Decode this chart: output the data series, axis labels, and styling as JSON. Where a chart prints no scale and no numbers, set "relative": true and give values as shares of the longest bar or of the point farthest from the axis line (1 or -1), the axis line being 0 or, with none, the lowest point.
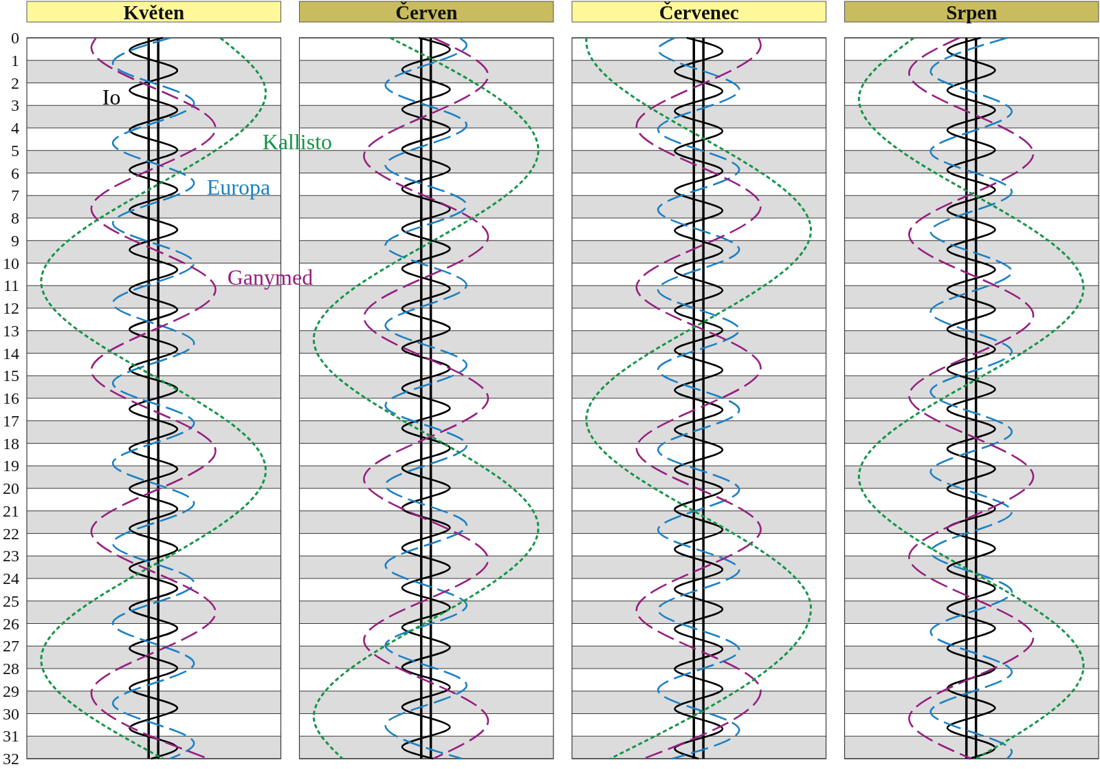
{
  "chart_data": [
    {
      "type": "line",
      "title": "Květen",
      "orientation": "horizontal",
      "relative": true,
      "ylim": [
        32,
        0
      ],
      "yticks": [
        0,
        1,
        2,
        3,
        4,
        5,
        6,
        7,
        8,
        9,
        10,
        11,
        12,
        13,
        14,
        15,
        16,
        17,
        18,
        19,
        20,
        21,
        22,
        23,
        24,
        25,
        26,
        27,
        28,
        29,
        30,
        31,
        32
      ],
      "grid": "y",
      "bands": [
        {
          "axis": "y",
          "from": 1,
          "to": 2,
          "color": "#dcdcdc"
        },
        {
          "axis": "y",
          "from": 3,
          "to": 4,
          "color": "#dcdcdc"
        },
        {
          "axis": "y",
          "from": 5,
          "to": 6,
          "color": "#dcdcdc"
        },
        {
          "axis": "y",
          "from": 7,
          "to": 8,
          "color": "#dcdcdc"
        },
        {
          "axis": "y",
          "from": 9,
          "to": 10,
          "color": "#dcdcdc"
        },
        {
          "axis": "y",
          "from": 11,
          "to": 12,
          "color": "#dcdcdc"
        },
        {
          "axis": "y",
          "from": 13,
          "to": 14,
          "color": "#dcdcdc"
        },
        {
          "axis": "y",
          "from": 15,
          "to": 16,
          "color": "#dcdcdc"
        },
        {
          "axis": "y",
          "from": 17,
          "to": 18,
          "color": "#dcdcdc"
        },
        {
          "axis": "y",
          "from": 19,
          "to": 20,
          "color": "#dcdcdc"
        },
        {
          "axis": "y",
          "from": 21,
          "to": 22,
          "color": "#dcdcdc"
        },
        {
          "axis": "y",
          "from": 23,
          "to": 24,
          "color": "#dcdcdc"
        },
        {
          "axis": "y",
          "from": 25,
          "to": 26,
          "color": "#dcdcdc"
        },
        {
          "axis": "y",
          "from": 27,
          "to": 28,
          "color": "#dcdcdc"
        },
        {
          "axis": "y",
          "from": 29,
          "to": 30,
          "color": "#dcdcdc"
        },
        {
          "axis": "y",
          "from": 31,
          "to": 32,
          "color": "#dcdcdc"
        }
      ],
      "ref_lines": [
        {
          "axis": "x",
          "value": 0.51,
          "color": "#000000"
        },
        {
          "axis": "x",
          "value": 0.55,
          "color": "#000000"
        }
      ],
      "series": [
        {
          "name": "Io",
          "color": "#000000",
          "line_style": "solid",
          "x": [
            0,
            0.56,
            1.45,
            2.33,
            3.21,
            4.1,
            4.98,
            5.87,
            6.75,
            7.64,
            8.52,
            9.41,
            10.29,
            11.18,
            12.06,
            12.94,
            13.83,
            14.71,
            15.6,
            16.48,
            17.37,
            18.25,
            19.14,
            20.02,
            20.91,
            21.79,
            22.68,
            23.56,
            24.44,
            25.33,
            26.21,
            27.1,
            27.98,
            28.87,
            29.75,
            30.64,
            31.52,
            32
          ],
          "values": [
            0.57,
            0.43,
            0.63,
            0.43,
            0.63,
            0.43,
            0.63,
            0.43,
            0.63,
            0.43,
            0.63,
            0.43,
            0.63,
            0.43,
            0.63,
            0.43,
            0.63,
            0.43,
            0.63,
            0.43,
            0.63,
            0.43,
            0.63,
            0.43,
            0.63,
            0.43,
            0.63,
            0.43,
            0.63,
            0.43,
            0.63,
            0.43,
            0.63,
            0.43,
            0.63,
            0.43,
            0.63,
            0.52
          ]
        },
        {
          "name": "Europa",
          "color": "#1b80c4",
          "line_style": "dashed",
          "x": [
            0,
            1.12,
            2.9,
            4.67,
            6.45,
            8.23,
            10.0,
            11.78,
            13.56,
            15.33,
            17.11,
            18.89,
            20.66,
            22.44,
            24.21,
            25.99,
            27.77,
            29.54,
            31.32,
            32
          ],
          "values": [
            0.6,
            0.36,
            0.7,
            0.36,
            0.7,
            0.36,
            0.7,
            0.36,
            0.7,
            0.36,
            0.7,
            0.36,
            0.7,
            0.36,
            0.7,
            0.36,
            0.7,
            0.36,
            0.7,
            0.6
          ]
        },
        {
          "name": "Ganymed",
          "color": "#961f7f",
          "line_style": "dashed",
          "x": [
            0,
            0.43,
            4.01,
            7.59,
            11.18,
            14.76,
            18.34,
            21.92,
            25.5,
            29.09,
            32
          ],
          "values": [
            0.29,
            0.27,
            0.79,
            0.27,
            0.79,
            0.27,
            0.79,
            0.27,
            0.79,
            0.27,
            0.76
          ]
        },
        {
          "name": "Kallisto",
          "color": "#139446",
          "line_style": "dotted",
          "x": [
            0,
            2.43,
            10.82,
            19.21,
            27.6,
            32
          ],
          "values": [
            0.81,
            1,
            0.06,
            1,
            0.06,
            0.57
          ]
        }
      ]
    },
    {
      "type": "line",
      "title": "Červen",
      "orientation": "horizontal",
      "relative": true,
      "ylim": [
        32,
        0
      ],
      "yticks": [
        0,
        1,
        2,
        3,
        4,
        5,
        6,
        7,
        8,
        9,
        10,
        11,
        12,
        13,
        14,
        15,
        16,
        17,
        18,
        19,
        20,
        21,
        22,
        23,
        24,
        25,
        26,
        27,
        28,
        29,
        30,
        31,
        32
      ],
      "grid": "y",
      "tick_labels": false,
      "bands": [
        {
          "axis": "y",
          "from": 1,
          "to": 2,
          "color": "#dcdcdc"
        },
        {
          "axis": "y",
          "from": 3,
          "to": 4,
          "color": "#dcdcdc"
        },
        {
          "axis": "y",
          "from": 5,
          "to": 6,
          "color": "#dcdcdc"
        },
        {
          "axis": "y",
          "from": 7,
          "to": 8,
          "color": "#dcdcdc"
        },
        {
          "axis": "y",
          "from": 9,
          "to": 10,
          "color": "#dcdcdc"
        },
        {
          "axis": "y",
          "from": 11,
          "to": 12,
          "color": "#dcdcdc"
        },
        {
          "axis": "y",
          "from": 13,
          "to": 14,
          "color": "#dcdcdc"
        },
        {
          "axis": "y",
          "from": 15,
          "to": 16,
          "color": "#dcdcdc"
        },
        {
          "axis": "y",
          "from": 17,
          "to": 18,
          "color": "#dcdcdc"
        },
        {
          "axis": "y",
          "from": 19,
          "to": 20,
          "color": "#dcdcdc"
        },
        {
          "axis": "y",
          "from": 21,
          "to": 22,
          "color": "#dcdcdc"
        },
        {
          "axis": "y",
          "from": 23,
          "to": 24,
          "color": "#dcdcdc"
        },
        {
          "axis": "y",
          "from": 25,
          "to": 26,
          "color": "#dcdcdc"
        },
        {
          "axis": "y",
          "from": 27,
          "to": 28,
          "color": "#dcdcdc"
        },
        {
          "axis": "y",
          "from": 29,
          "to": 30,
          "color": "#dcdcdc"
        },
        {
          "axis": "y",
          "from": 31,
          "to": 32,
          "color": "#dcdcdc"
        }
      ],
      "ref_lines": [
        {
          "axis": "x",
          "value": 0.51,
          "color": "#000000"
        },
        {
          "axis": "x",
          "value": 0.55,
          "color": "#000000"
        }
      ],
      "series": [
        {
          "color": "#000000",
          "line_style": "solid",
          "x": [
            0,
            0.52,
            1.41,
            2.29,
            3.18,
            4.06,
            4.94,
            5.83,
            6.71,
            7.6,
            8.48,
            9.37,
            10.25,
            11.14,
            12.02,
            12.91,
            13.79,
            14.67,
            15.56,
            16.44,
            17.33,
            18.21,
            19.1,
            19.98,
            20.87,
            21.75,
            22.64,
            23.52,
            24.41,
            25.29,
            26.17,
            27.06,
            27.94,
            28.83,
            29.71,
            30.6,
            31.48,
            32
          ],
          "values": [
            0.5,
            0.63,
            0.43,
            0.63,
            0.43,
            0.63,
            0.43,
            0.63,
            0.43,
            0.63,
            0.43,
            0.63,
            0.43,
            0.63,
            0.43,
            0.63,
            0.43,
            0.63,
            0.43,
            0.63,
            0.43,
            0.63,
            0.43,
            0.63,
            0.43,
            0.63,
            0.43,
            0.63,
            0.43,
            0.63,
            0.43,
            0.63,
            0.43,
            0.63,
            0.43,
            0.63,
            0.43,
            0.56
          ]
        },
        {
          "color": "#1b80c4",
          "line_style": "dashed",
          "x": [
            0,
            0.32,
            2.1,
            3.87,
            5.65,
            7.43,
            9.2,
            10.98,
            12.76,
            14.53,
            16.31,
            18.09,
            19.86,
            21.64,
            23.42,
            25.19,
            26.97,
            28.74,
            30.52,
            32
          ],
          "values": [
            0.67,
            0.7,
            0.36,
            0.7,
            0.36,
            0.7,
            0.36,
            0.7,
            0.36,
            0.7,
            0.36,
            0.7,
            0.36,
            0.7,
            0.36,
            0.7,
            0.36,
            0.7,
            0.36,
            0.68
          ]
        },
        {
          "color": "#961f7f",
          "line_style": "dashed",
          "x": [
            0,
            1.67,
            5.25,
            8.83,
            12.41,
            16.0,
            19.58,
            23.16,
            26.74,
            30.32,
            32
          ],
          "values": [
            0.56,
            0.79,
            0.27,
            0.79,
            0.27,
            0.79,
            0.27,
            0.79,
            0.27,
            0.79,
            0.56
          ]
        },
        {
          "color": "#139446",
          "line_style": "dotted",
          "x": [
            0,
            4.99,
            13.38,
            21.76,
            30.15,
            32
          ],
          "values": [
            0.38,
            1,
            0.06,
            1,
            0.06,
            0.18
          ]
        }
      ]
    },
    {
      "type": "line",
      "title": "Červenec",
      "orientation": "horizontal",
      "relative": true,
      "ylim": [
        32,
        0
      ],
      "yticks": [
        0,
        1,
        2,
        3,
        4,
        5,
        6,
        7,
        8,
        9,
        10,
        11,
        12,
        13,
        14,
        15,
        16,
        17,
        18,
        19,
        20,
        21,
        22,
        23,
        24,
        25,
        26,
        27,
        28,
        29,
        30,
        31,
        32
      ],
      "grid": "y",
      "tick_labels": false,
      "bands": [
        {
          "axis": "y",
          "from": 1,
          "to": 2,
          "color": "#dcdcdc"
        },
        {
          "axis": "y",
          "from": 3,
          "to": 4,
          "color": "#dcdcdc"
        },
        {
          "axis": "y",
          "from": 5,
          "to": 6,
          "color": "#dcdcdc"
        },
        {
          "axis": "y",
          "from": 7,
          "to": 8,
          "color": "#dcdcdc"
        },
        {
          "axis": "y",
          "from": 9,
          "to": 10,
          "color": "#dcdcdc"
        },
        {
          "axis": "y",
          "from": 11,
          "to": 12,
          "color": "#dcdcdc"
        },
        {
          "axis": "y",
          "from": 13,
          "to": 14,
          "color": "#dcdcdc"
        },
        {
          "axis": "y",
          "from": 15,
          "to": 16,
          "color": "#dcdcdc"
        },
        {
          "axis": "y",
          "from": 17,
          "to": 18,
          "color": "#dcdcdc"
        },
        {
          "axis": "y",
          "from": 19,
          "to": 20,
          "color": "#dcdcdc"
        },
        {
          "axis": "y",
          "from": 21,
          "to": 22,
          "color": "#dcdcdc"
        },
        {
          "axis": "y",
          "from": 23,
          "to": 24,
          "color": "#dcdcdc"
        },
        {
          "axis": "y",
          "from": 25,
          "to": 26,
          "color": "#dcdcdc"
        },
        {
          "axis": "y",
          "from": 27,
          "to": 28,
          "color": "#dcdcdc"
        },
        {
          "axis": "y",
          "from": 29,
          "to": 30,
          "color": "#dcdcdc"
        },
        {
          "axis": "y",
          "from": 31,
          "to": 32,
          "color": "#dcdcdc"
        }
      ],
      "ref_lines": [
        {
          "axis": "x",
          "value": 0.51,
          "color": "#000000"
        },
        {
          "axis": "x",
          "value": 0.55,
          "color": "#000000"
        }
      ],
      "series": [
        {
          "color": "#000000",
          "line_style": "solid",
          "x": [
            0,
            0.6,
            1.48,
            2.37,
            3.25,
            4.14,
            5.02,
            5.91,
            6.79,
            7.67,
            8.56,
            9.44,
            10.33,
            11.21,
            12.1,
            12.98,
            13.87,
            14.75,
            15.64,
            16.52,
            17.4,
            18.29,
            19.17,
            20.06,
            20.94,
            21.83,
            22.71,
            23.6,
            24.48,
            25.37,
            26.25,
            27.14,
            28.02,
            28.9,
            29.79,
            30.67,
            31.56,
            32
          ],
          "values": [
            0.48,
            0.63,
            0.43,
            0.63,
            0.43,
            0.63,
            0.43,
            0.63,
            0.43,
            0.63,
            0.43,
            0.63,
            0.43,
            0.63,
            0.43,
            0.63,
            0.43,
            0.63,
            0.43,
            0.63,
            0.43,
            0.63,
            0.43,
            0.63,
            0.43,
            0.63,
            0.43,
            0.63,
            0.43,
            0.63,
            0.43,
            0.63,
            0.43,
            0.63,
            0.43,
            0.63,
            0.43,
            0.53
          ]
        },
        {
          "color": "#1b80c4",
          "line_style": "dashed",
          "x": [
            0,
            0.52,
            2.3,
            4.07,
            5.85,
            7.63,
            9.4,
            11.18,
            12.96,
            14.73,
            16.51,
            18.29,
            20.06,
            21.84,
            23.62,
            25.39,
            27.17,
            28.95,
            30.72,
            32
          ],
          "values": [
            0.43,
            0.36,
            0.7,
            0.36,
            0.7,
            0.36,
            0.7,
            0.36,
            0.7,
            0.36,
            0.7,
            0.36,
            0.7,
            0.36,
            0.7,
            0.36,
            0.7,
            0.36,
            0.7,
            0.42
          ]
        },
        {
          "color": "#961f7f",
          "line_style": "dashed",
          "x": [
            0,
            0.32,
            3.91,
            7.49,
            11.07,
            14.65,
            18.23,
            21.82,
            25.4,
            28.98,
            32
          ],
          "values": [
            0.78,
            0.79,
            0.27,
            0.79,
            0.27,
            0.79,
            0.27,
            0.79,
            0.27,
            0.79,
            0.3
          ]
        },
        {
          "color": "#139446",
          "line_style": "dotted",
          "x": [
            0,
            0.15,
            8.54,
            16.93,
            25.32,
            32
          ],
          "values": [
            0.06,
            0.06,
            1,
            0.06,
            1,
            0.16
          ]
        }
      ]
    },
    {
      "type": "line",
      "title": "Srpen",
      "orientation": "horizontal",
      "relative": true,
      "ylim": [
        32,
        0
      ],
      "yticks": [
        0,
        1,
        2,
        3,
        4,
        5,
        6,
        7,
        8,
        9,
        10,
        11,
        12,
        13,
        14,
        15,
        16,
        17,
        18,
        19,
        20,
        21,
        22,
        23,
        24,
        25,
        26,
        27,
        28,
        29,
        30,
        31,
        32
      ],
      "grid": "y",
      "tick_labels": false,
      "bands": [
        {
          "axis": "y",
          "from": 1,
          "to": 2,
          "color": "#dcdcdc"
        },
        {
          "axis": "y",
          "from": 3,
          "to": 4,
          "color": "#dcdcdc"
        },
        {
          "axis": "y",
          "from": 5,
          "to": 6,
          "color": "#dcdcdc"
        },
        {
          "axis": "y",
          "from": 7,
          "to": 8,
          "color": "#dcdcdc"
        },
        {
          "axis": "y",
          "from": 9,
          "to": 10,
          "color": "#dcdcdc"
        },
        {
          "axis": "y",
          "from": 11,
          "to": 12,
          "color": "#dcdcdc"
        },
        {
          "axis": "y",
          "from": 13,
          "to": 14,
          "color": "#dcdcdc"
        },
        {
          "axis": "y",
          "from": 15,
          "to": 16,
          "color": "#dcdcdc"
        },
        {
          "axis": "y",
          "from": 17,
          "to": 18,
          "color": "#dcdcdc"
        },
        {
          "axis": "y",
          "from": 19,
          "to": 20,
          "color": "#dcdcdc"
        },
        {
          "axis": "y",
          "from": 21,
          "to": 22,
          "color": "#dcdcdc"
        },
        {
          "axis": "y",
          "from": 23,
          "to": 24,
          "color": "#dcdcdc"
        },
        {
          "axis": "y",
          "from": 25,
          "to": 26,
          "color": "#dcdcdc"
        },
        {
          "axis": "y",
          "from": 27,
          "to": 28,
          "color": "#dcdcdc"
        },
        {
          "axis": "y",
          "from": 29,
          "to": 30,
          "color": "#dcdcdc"
        },
        {
          "axis": "y",
          "from": 31,
          "to": 32,
          "color": "#dcdcdc"
        }
      ],
      "ref_lines": [
        {
          "axis": "x",
          "value": 0.51,
          "color": "#000000"
        },
        {
          "axis": "x",
          "value": 0.55,
          "color": "#000000"
        }
      ],
      "series": [
        {
          "color": "#000000",
          "line_style": "solid",
          "x": [
            0,
            0.56,
            1.44,
            2.33,
            3.21,
            4.1,
            4.98,
            5.87,
            6.75,
            7.64,
            8.52,
            9.4,
            10.29,
            11.17,
            12.06,
            12.94,
            13.83,
            14.71,
            15.6,
            16.48,
            17.37,
            18.25,
            19.14,
            20.02,
            20.9,
            21.79,
            22.67,
            23.56,
            24.44,
            25.33,
            26.21,
            27.1,
            27.98,
            28.87,
            29.75,
            30.63,
            31.52,
            32
          ],
          "values": [
            0.57,
            0.43,
            0.63,
            0.43,
            0.63,
            0.43,
            0.63,
            0.43,
            0.63,
            0.43,
            0.63,
            0.43,
            0.63,
            0.43,
            0.63,
            0.43,
            0.63,
            0.43,
            0.63,
            0.43,
            0.63,
            0.43,
            0.63,
            0.43,
            0.63,
            0.43,
            0.63,
            0.43,
            0.63,
            0.43,
            0.63,
            0.43,
            0.63,
            0.43,
            0.63,
            0.43,
            0.63,
            0.52
          ]
        },
        {
          "color": "#1b80c4",
          "line_style": "dashed",
          "x": [
            0,
            1.5,
            3.27,
            5.05,
            6.83,
            8.6,
            10.38,
            12.16,
            13.93,
            15.71,
            17.49,
            19.26,
            21.04,
            22.82,
            24.59,
            26.37,
            28.15,
            29.92,
            31.7,
            32
          ],
          "values": [
            0.68,
            0.36,
            0.7,
            0.36,
            0.7,
            0.36,
            0.7,
            0.36,
            0.7,
            0.36,
            0.7,
            0.36,
            0.7,
            0.36,
            0.7,
            0.36,
            0.7,
            0.36,
            0.7,
            0.68
          ]
        },
        {
          "color": "#961f7f",
          "line_style": "dashed",
          "x": [
            0,
            1.56,
            5.14,
            8.73,
            12.31,
            15.89,
            19.47,
            23.05,
            26.64,
            30.22,
            32
          ],
          "values": [
            0.48,
            0.27,
            0.79,
            0.27,
            0.79,
            0.27,
            0.79,
            0.27,
            0.79,
            0.27,
            0.53
          ]
        },
        {
          "color": "#139446",
          "line_style": "dotted",
          "x": [
            0,
            2.71,
            11.1,
            19.49,
            27.88,
            32
          ],
          "values": [
            0.29,
            0.06,
            1,
            0.06,
            1,
            0.55
          ]
        }
      ]
    }
  ]
}
